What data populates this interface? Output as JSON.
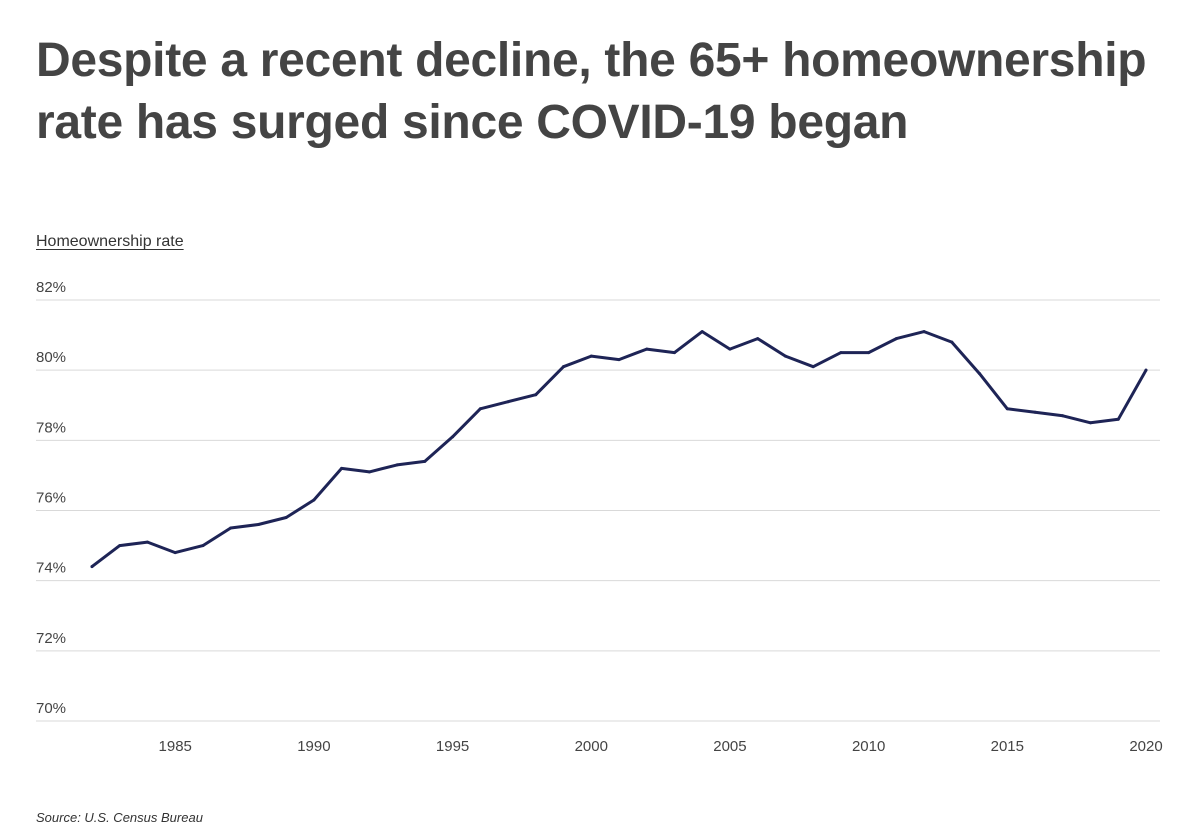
{
  "title": "Despite a recent decline, the 65+ homeownership rate has surged since COVID-19 began",
  "source": "Source:  U.S. Census Bureau",
  "chart_data": {
    "type": "line",
    "title": "Despite a recent decline, the 65+ homeownership rate has surged since COVID-19 began",
    "ylabel": "Homeownership rate",
    "xlabel": "",
    "ylim": [
      70,
      82
    ],
    "yticks": [
      "82%",
      "80%",
      "78%",
      "76%",
      "74%",
      "72%",
      "70%"
    ],
    "xticks": [
      "1985",
      "1990",
      "1995",
      "2000",
      "2005",
      "2010",
      "2015",
      "2020"
    ],
    "grid": true,
    "x": [
      1982,
      1983,
      1984,
      1985,
      1986,
      1987,
      1988,
      1989,
      1990,
      1991,
      1992,
      1993,
      1994,
      1995,
      1996,
      1997,
      1998,
      1999,
      2000,
      2001,
      2002,
      2003,
      2004,
      2005,
      2006,
      2007,
      2008,
      2009,
      2010,
      2011,
      2012,
      2013,
      2014,
      2015,
      2016,
      2017,
      2018,
      2019,
      2020
    ],
    "series": [
      {
        "values": [
          74.4,
          75.0,
          75.1,
          74.8,
          75.0,
          75.5,
          75.6,
          75.8,
          76.3,
          77.2,
          77.1,
          77.3,
          77.4,
          78.1,
          78.9,
          79.1,
          79.3,
          80.1,
          80.4,
          80.3,
          80.6,
          80.5,
          81.1,
          80.6,
          80.9,
          80.4,
          80.1,
          80.5,
          80.5,
          80.9,
          81.1,
          80.8,
          79.9,
          78.9,
          78.8,
          78.7,
          78.5,
          78.6,
          80.0
        ],
        "color": "#1e2456"
      }
    ]
  }
}
